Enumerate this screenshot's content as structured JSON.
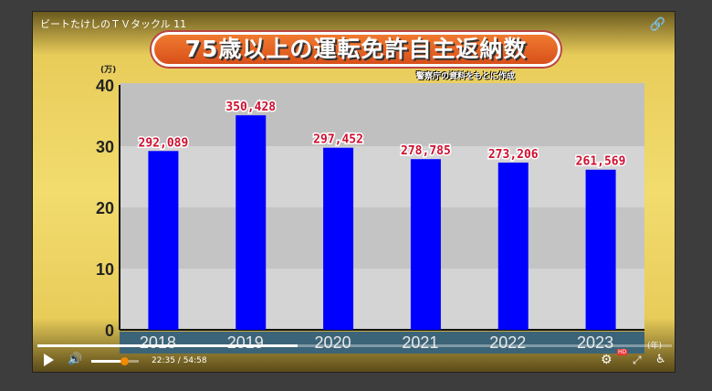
{
  "player": {
    "video_title": "ビートたけしのＴＶタックル 11",
    "current_time": "22:35",
    "duration": "54:58",
    "time_display": "22:35 / 54:58",
    "progress_fraction": 0.41,
    "volume_fraction": 0.7,
    "hd_badge": "HD",
    "icons": [
      "link-icon",
      "play-icon",
      "volume-icon",
      "settings-icon",
      "fullscreen-icon",
      "accessibility-icon"
    ]
  },
  "banner_title": "75歳以上の運転免許自主返納数",
  "source_note": "警察庁の資料をもとに作成",
  "chart_data": {
    "type": "bar",
    "title": "75歳以上の運転免許自主返納数",
    "categories": [
      "2018",
      "2019",
      "2020",
      "2021",
      "2022",
      "2023"
    ],
    "values": [
      292089,
      350428,
      297452,
      278785,
      273206,
      261569
    ],
    "data_labels": [
      "292,089",
      "350,428",
      "297,452",
      "278,785",
      "273,206",
      "261,569"
    ],
    "ylabel": "(万)",
    "xlabel": "(年)",
    "yticks": [
      "0",
      "10",
      "20",
      "30",
      "40"
    ],
    "ylim": [
      0,
      40
    ],
    "y_unit": "万",
    "bar_color": "#0000ff",
    "label_color": "#d01030",
    "grid": true
  }
}
